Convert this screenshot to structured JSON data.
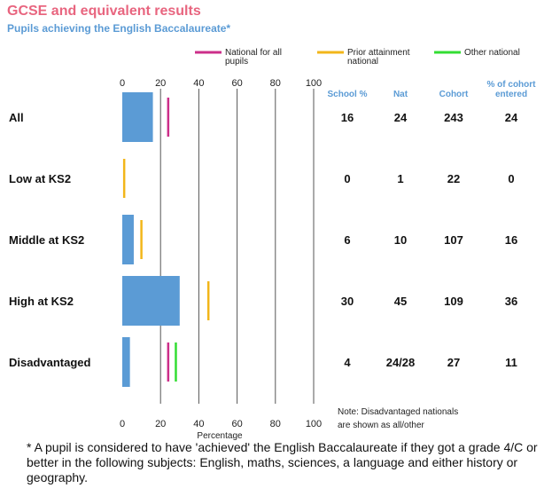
{
  "title": "GCSE and equivalent results",
  "subtitle": "Pupils achieving the English Baccalaureate*",
  "legend": [
    {
      "lines": [
        "National for all",
        "pupils"
      ],
      "color": "#cc2f8a"
    },
    {
      "lines": [
        "Prior attainment",
        "national"
      ],
      "color": "#f2b61a"
    },
    {
      "lines": [
        "Other national"
      ],
      "color": "#33dd33"
    }
  ],
  "columns": [
    {
      "lines": [
        "School %"
      ]
    },
    {
      "lines": [
        "Nat"
      ]
    },
    {
      "lines": [
        "Cohort"
      ]
    },
    {
      "lines": [
        "% of cohort",
        "entered"
      ]
    }
  ],
  "note": [
    "Note: Disadvantaged nationals",
    "are shown as all/other"
  ],
  "footnote": "* A pupil is considered to have 'achieved' the English Baccalaureate if they got a grade 4/C or better in the following subjects: English, maths, sciences, a language and either history or geography.",
  "chart_data": {
    "type": "bar",
    "orientation": "horizontal",
    "xlabel": "Percentage",
    "xlim": [
      0,
      100
    ],
    "xticks": [
      0,
      20,
      40,
      60,
      80,
      100
    ],
    "grid": true,
    "categories": [
      "All",
      "Low at KS2",
      "Middle at KS2",
      "High at KS2",
      "Disadvantaged"
    ],
    "series": [
      {
        "values": [
          16,
          0,
          6,
          30,
          4
        ],
        "color": "#5b9bd5"
      }
    ],
    "markers": [
      {
        "name": "National for all pupils",
        "color": "#cc2f8a",
        "values": [
          24,
          null,
          null,
          null,
          24
        ]
      },
      {
        "name": "Prior attainment national",
        "color": "#f2b61a",
        "values": [
          null,
          1,
          10,
          45,
          null
        ]
      },
      {
        "name": "Other national",
        "color": "#33dd33",
        "values": [
          null,
          null,
          null,
          null,
          28
        ]
      }
    ],
    "table": [
      [
        "16",
        "24",
        "243",
        "24"
      ],
      [
        "0",
        "1",
        "22",
        "0"
      ],
      [
        "6",
        "10",
        "107",
        "16"
      ],
      [
        "30",
        "45",
        "109",
        "36"
      ],
      [
        "4",
        "24/28",
        "27",
        "11"
      ]
    ]
  }
}
